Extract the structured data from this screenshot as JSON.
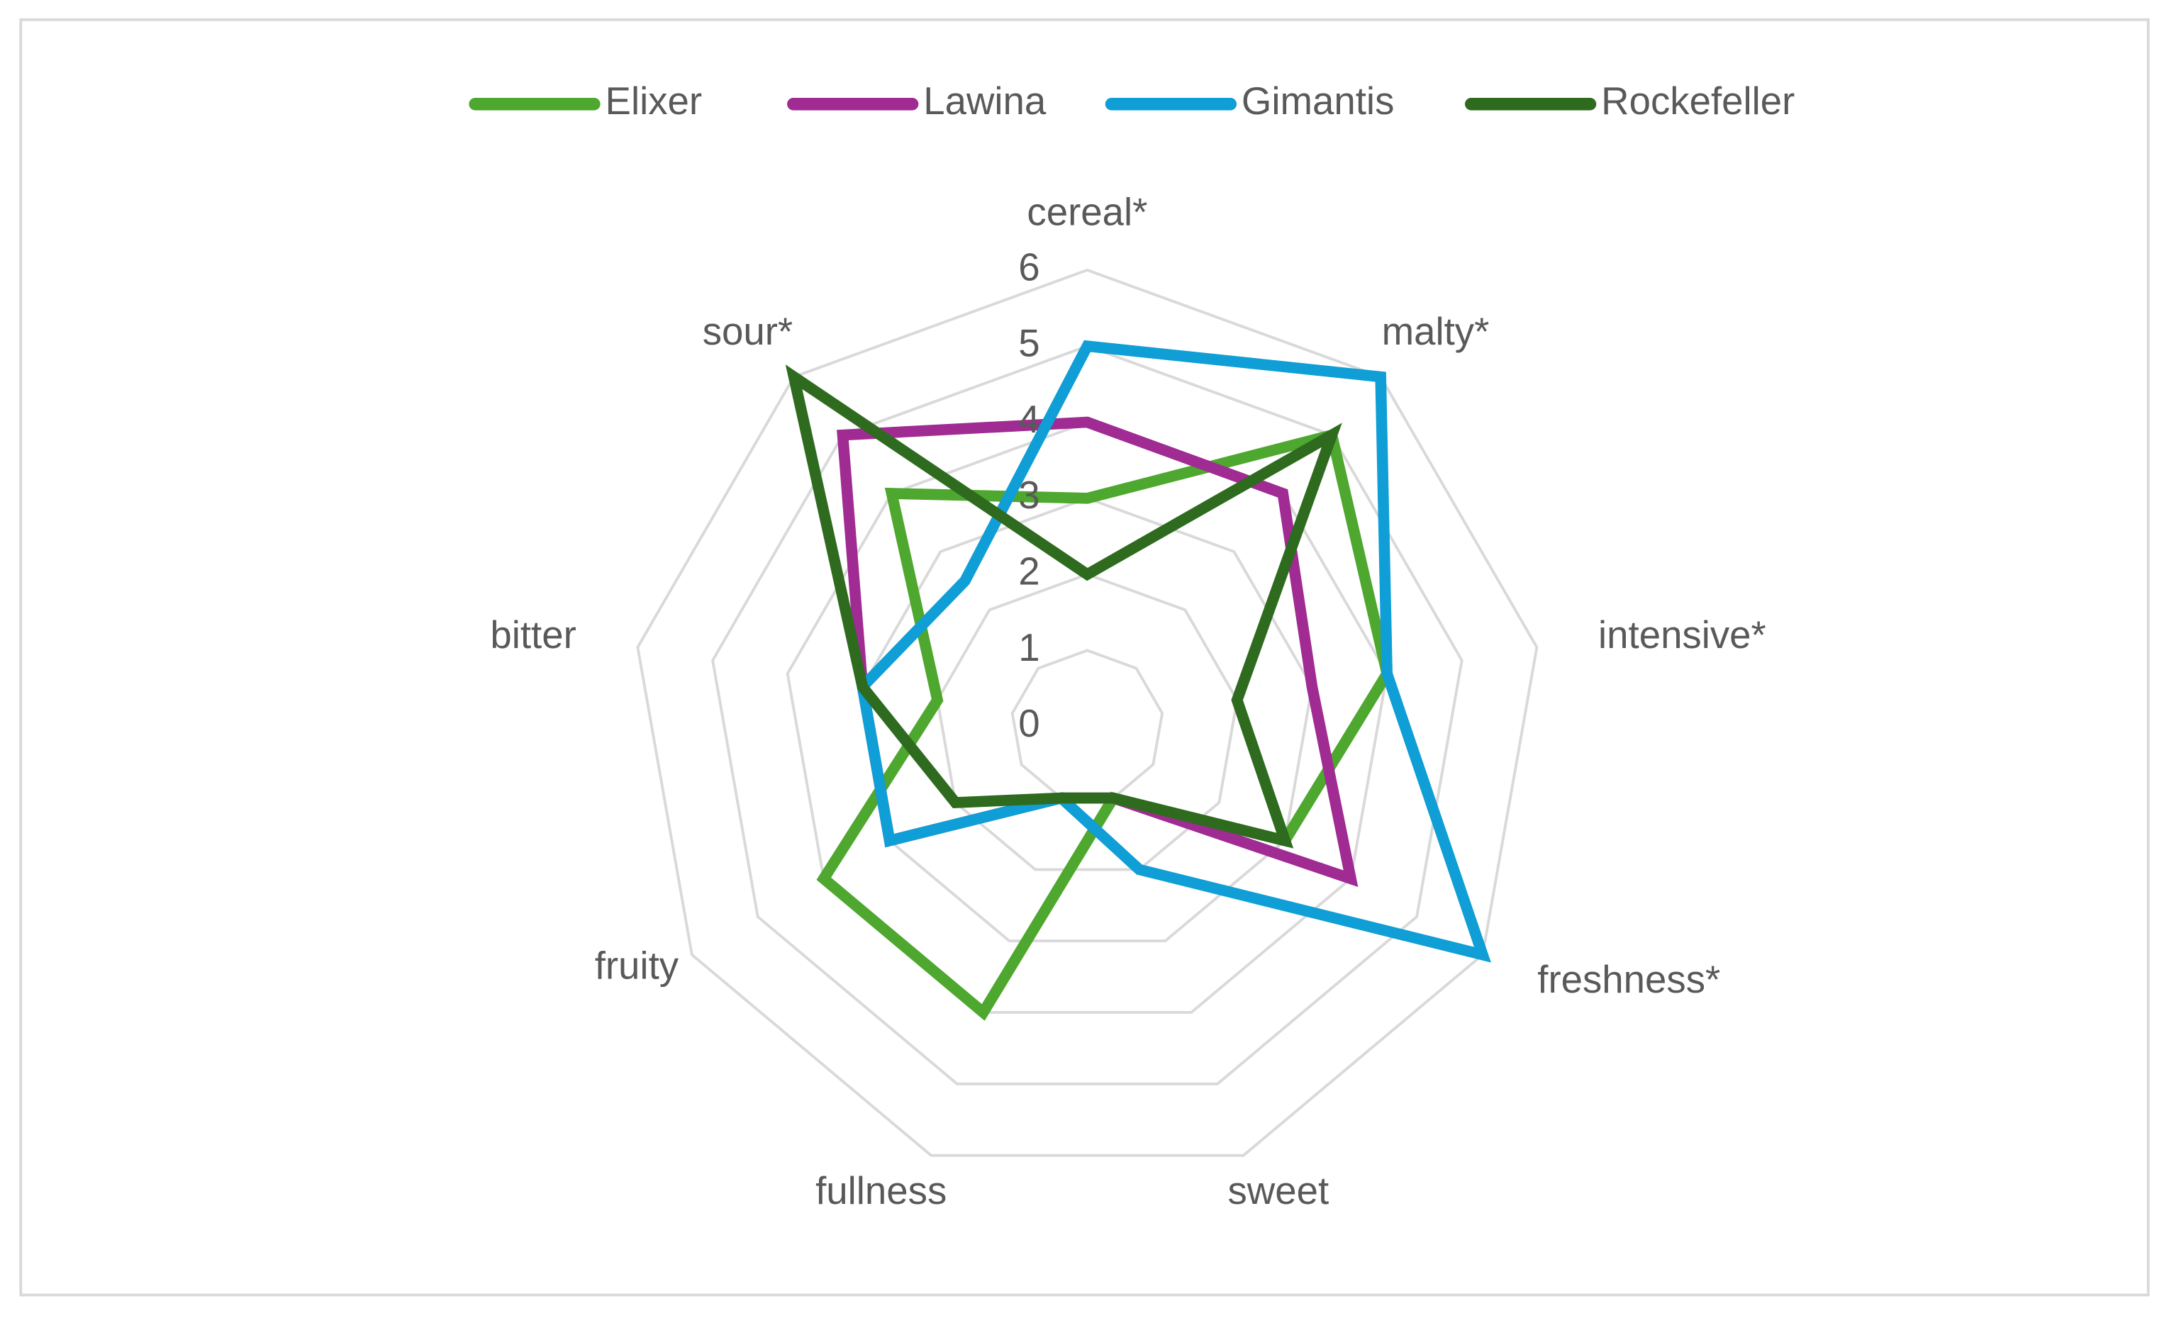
{
  "chart_data": {
    "type": "radar",
    "categories": [
      "cereal*",
      "malty*",
      "intensive*",
      "freshness*",
      "sweet",
      "fullness",
      "fruity",
      "bitter",
      "sour*"
    ],
    "series": [
      {
        "name": "Elixer",
        "color": "#4ea72e",
        "values": [
          3,
          5,
          4,
          3,
          1,
          4,
          4,
          2,
          4
        ]
      },
      {
        "name": "Lawina",
        "color": "#a02b93",
        "values": [
          4,
          4,
          3,
          4,
          1,
          1,
          3,
          3,
          5
        ]
      },
      {
        "name": "Gimantis",
        "color": "#0f9ed5",
        "values": [
          5,
          6,
          4,
          6,
          2,
          1,
          3,
          3,
          2.5
        ]
      },
      {
        "name": "Rockefeller",
        "color": "#2e6b1f",
        "values": [
          2,
          5,
          2,
          3,
          1,
          1,
          2,
          3,
          6
        ]
      }
    ],
    "ylim": [
      0,
      6
    ],
    "yticks": [
      0,
      1,
      2,
      3,
      4,
      5,
      6
    ],
    "grid": true,
    "legend": "top"
  }
}
